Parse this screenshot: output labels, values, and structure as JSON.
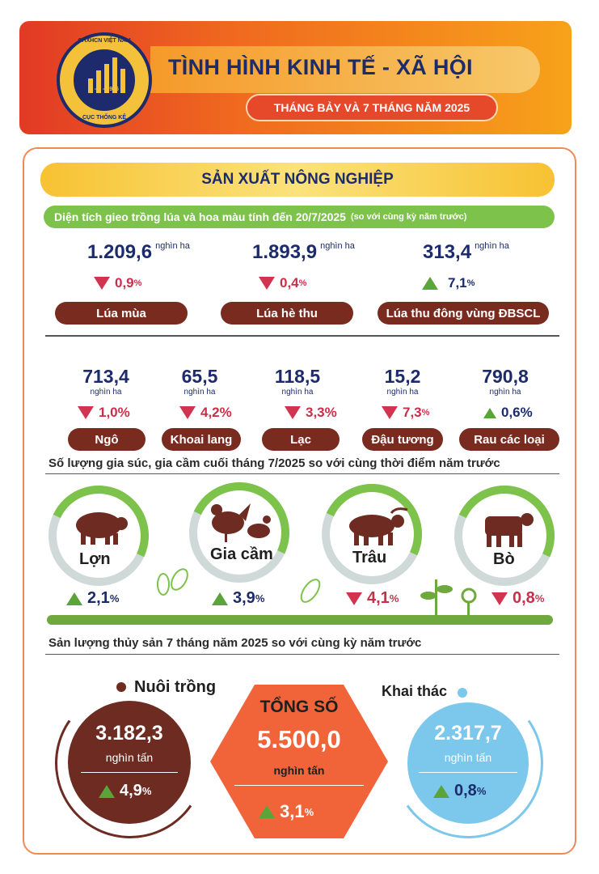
{
  "header": {
    "logo_text_top": "CHXHCN VIỆT NAM",
    "logo_year": "6 - 5 - 1946",
    "logo_text_bottom": "CỤC THỐNG KÊ",
    "title": "TÌNH HÌNH KINH TẾ - XÃ HỘI",
    "subtitle": "THÁNG BẢY VÀ 7 THÁNG NĂM 2025"
  },
  "section_title": "SẢN XUẤT NÔNG NGHIỆP",
  "rice": {
    "heading": "Diện tích gieo trồng lúa và hoa màu tính đến 20/7/2025",
    "heading_note": "(so với cùng kỳ năm trước)",
    "items": [
      {
        "value": "1.209,6",
        "unit": "nghìn ha",
        "change": "0,9",
        "pct": "%",
        "direction": "down",
        "label": "Lúa mùa"
      },
      {
        "value": "1.893,9",
        "unit": "nghìn ha",
        "change": "0,4",
        "pct": "%",
        "direction": "down",
        "label": "Lúa hè thu"
      },
      {
        "value": "313,4",
        "unit": "nghìn ha",
        "change": "7,1",
        "pct": "%",
        "direction": "up",
        "label": "Lúa thu đông vùng ĐBSCL"
      }
    ]
  },
  "crops": [
    {
      "value": "713,4",
      "unit": "nghìn ha",
      "change": "1,0%",
      "direction": "down",
      "label": "Ngô"
    },
    {
      "value": "65,5",
      "unit": "nghìn ha",
      "change": "4,2%",
      "direction": "down",
      "label": "Khoai lang"
    },
    {
      "value": "118,5",
      "unit": "nghìn ha",
      "change": "3,3%",
      "direction": "down",
      "label": "Lạc"
    },
    {
      "value": "15,2",
      "unit": "nghìn ha",
      "change": "7,3",
      "pct": "%",
      "direction": "down",
      "label": "Đậu tương"
    },
    {
      "value": "790,8",
      "unit": "nghìn ha",
      "change": "0,6%",
      "direction": "up",
      "label": "Rau các loại"
    }
  ],
  "livestock": {
    "heading": "Số lượng gia súc, gia cầm cuối tháng 7/2025 so với cùng thời điểm năm trước",
    "items": [
      {
        "label": "Lợn",
        "change": "2,1",
        "pct": "%",
        "direction": "up",
        "icon": "pig-icon"
      },
      {
        "label": "Gia cầm",
        "change": "3,9",
        "pct": "%",
        "direction": "up",
        "icon": "poultry-icon"
      },
      {
        "label": "Trâu",
        "change": "4,1",
        "pct": "%",
        "direction": "down",
        "icon": "buffalo-icon"
      },
      {
        "label": "Bò",
        "change": "0,8",
        "pct": "%",
        "direction": "down",
        "icon": "cow-icon"
      }
    ]
  },
  "fishery": {
    "heading": "Sản lượng thủy sản 7 tháng năm 2025 so với cùng kỳ năm trước",
    "aquaculture": {
      "label": "Nuôi trồng",
      "value": "3.182,3",
      "unit": "nghìn tấn",
      "change": "4,9",
      "pct": "%",
      "direction": "up"
    },
    "total": {
      "label": "TỔNG SỐ",
      "value": "5.500,0",
      "unit": "nghìn tấn",
      "change": "3,1",
      "pct": "%",
      "direction": "up"
    },
    "capture": {
      "label": "Khai thác",
      "value": "2.317,7",
      "unit": "nghìn tấn",
      "change": "0,8",
      "pct": "%",
      "direction": "up"
    }
  },
  "colors": {
    "navy": "#1c2b6b",
    "brown": "#7a2b1f",
    "green": "#7dc24b",
    "red": "#d1344f",
    "orange": "#f1643a",
    "blue": "#7cc7ec"
  }
}
